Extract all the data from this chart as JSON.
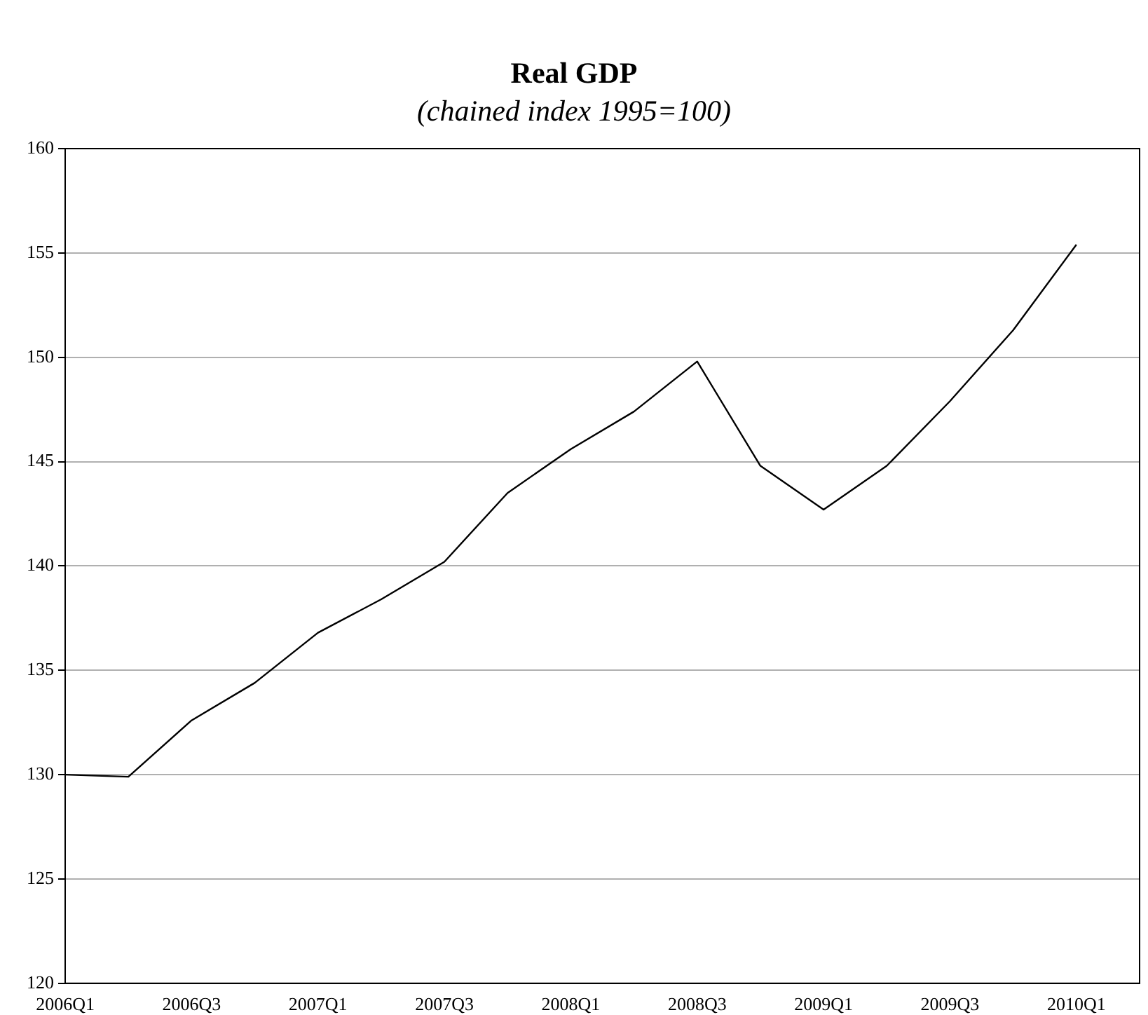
{
  "chart_data": {
    "type": "line",
    "title": "Real GDP",
    "subtitle": "(chained index 1995=100)",
    "categories": [
      "2006Q1",
      null,
      "2006Q3",
      null,
      "2007Q1",
      null,
      "2007Q3",
      null,
      "2008Q1",
      null,
      "2008Q3",
      null,
      "2009Q1",
      null,
      "2009Q3",
      null,
      "2010Q1"
    ],
    "series": [
      {
        "color": "#000000",
        "values": [
          130.0,
          129.9,
          132.6,
          134.4,
          136.8,
          138.4,
          140.2,
          143.5,
          145.6,
          147.4,
          149.8,
          144.8,
          142.7,
          144.8,
          147.9,
          151.3,
          155.4
        ]
      }
    ],
    "ylim": [
      120,
      160
    ],
    "yticks": [
      120,
      125,
      130,
      135,
      140,
      145,
      150,
      155,
      160
    ],
    "grid": "y",
    "legend": false,
    "marker": "none",
    "line_style": "solid"
  }
}
